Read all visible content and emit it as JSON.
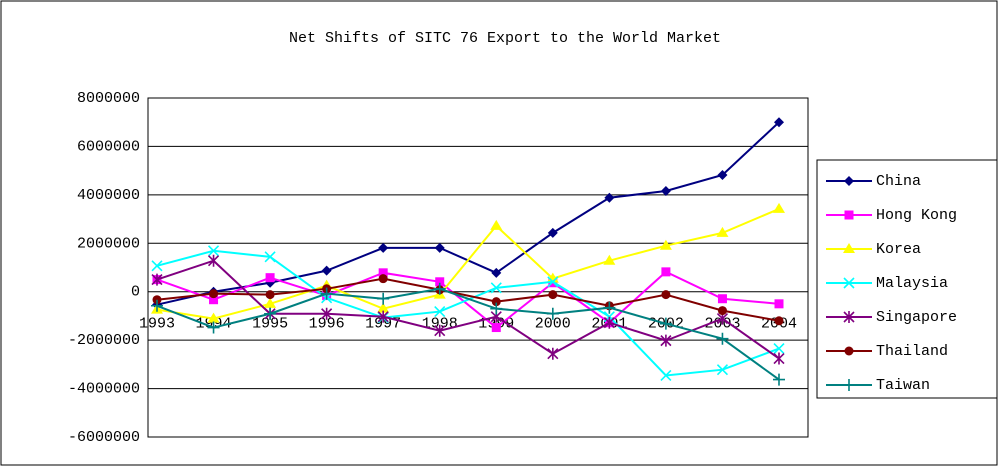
{
  "chart_data": {
    "type": "line",
    "title": "Net Shifts of SITC 76 Export to the World Market",
    "categories": [
      "1993",
      "1994",
      "1995",
      "1996",
      "1997",
      "1998",
      "1999",
      "2000",
      "2001",
      "2002",
      "2003",
      "2004"
    ],
    "ylim": [
      -6000000,
      8000000
    ],
    "yticks": [
      -6000000,
      -4000000,
      -2000000,
      0,
      2000000,
      4000000,
      6000000,
      8000000
    ],
    "grid": true,
    "legend": "right",
    "series": [
      {
        "name": "China",
        "color": "#000080",
        "marker": "diamond",
        "values": [
          -536000,
          0,
          370000,
          870000,
          1810000,
          1810000,
          780000,
          2430000,
          3880000,
          4160000,
          4820000,
          7000000
        ]
      },
      {
        "name": "Hong Kong",
        "color": "#ff00ff",
        "marker": "square",
        "values": [
          500000,
          -330000,
          580000,
          -160000,
          780000,
          410000,
          -1480000,
          370000,
          -1280000,
          820000,
          -290000,
          -500000
        ]
      },
      {
        "name": "Korea",
        "color": "#ffff00",
        "marker": "triangle",
        "values": [
          -740000,
          -1110000,
          -500000,
          250000,
          -700000,
          -120000,
          2720000,
          540000,
          1280000,
          1900000,
          2430000,
          3420000
        ]
      },
      {
        "name": "Malaysia",
        "color": "#00ffff",
        "marker": "x",
        "values": [
          1070000,
          1690000,
          1440000,
          -250000,
          -1070000,
          -820000,
          160000,
          410000,
          -1030000,
          -3460000,
          -3220000,
          -2350000
        ]
      },
      {
        "name": "Singapore",
        "color": "#800080",
        "marker": "star",
        "values": [
          500000,
          1280000,
          -910000,
          -910000,
          -1030000,
          -1610000,
          -1030000,
          -2560000,
          -1280000,
          -2020000,
          -1110000,
          -2760000
        ]
      },
      {
        "name": "Thailand",
        "color": "#800000",
        "marker": "circle",
        "values": [
          -330000,
          -80000,
          -120000,
          120000,
          540000,
          80000,
          -410000,
          -120000,
          -580000,
          -120000,
          -780000,
          -1200000
        ]
      },
      {
        "name": "Taiwan",
        "color": "#008080",
        "marker": "plus",
        "values": [
          -580000,
          -1480000,
          -910000,
          -80000,
          -290000,
          120000,
          -700000,
          -910000,
          -660000,
          -1320000,
          -1940000,
          -3630000
        ]
      }
    ]
  }
}
